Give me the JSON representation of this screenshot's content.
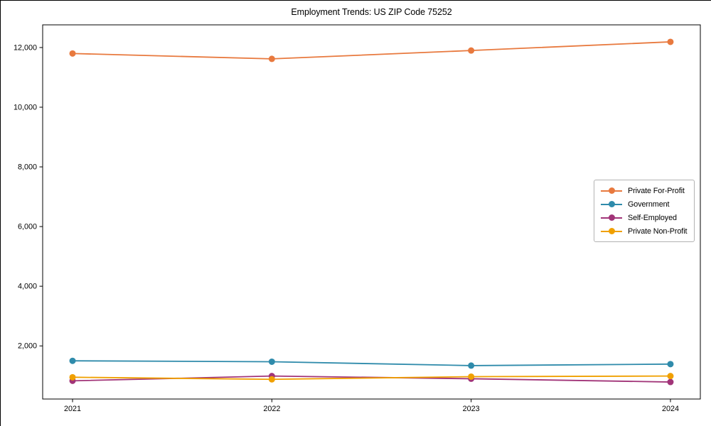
{
  "chart_data": {
    "type": "line",
    "title": "Employment Trends: US ZIP Code 75252",
    "x": [
      2021,
      2022,
      2023,
      2024
    ],
    "x_tick_labels": [
      "2021",
      "2022",
      "2023",
      "2024"
    ],
    "series": [
      {
        "name": "Private For-Profit",
        "color": "#e8793e",
        "values": [
          11800,
          11620,
          11900,
          12190
        ]
      },
      {
        "name": "Government",
        "color": "#2f8bab",
        "values": [
          1500,
          1470,
          1340,
          1390
        ]
      },
      {
        "name": "Self-Employed",
        "color": "#a13478",
        "values": [
          830,
          990,
          900,
          790
        ]
      },
      {
        "name": "Private Non-Profit",
        "color": "#f0a000",
        "values": [
          950,
          880,
          970,
          990
        ]
      }
    ],
    "yticks": {
      "values": [
        2000,
        4000,
        6000,
        8000,
        10000,
        12000
      ],
      "labels": [
        "2,000",
        "4,000",
        "6,000",
        "8,000",
        "10,000",
        "12,000"
      ]
    },
    "xlim": [
      2020.85,
      2024.15
    ],
    "ylim": [
      220,
      12760
    ],
    "xlabel": "",
    "ylabel": "",
    "grid": false,
    "legend_position": "center right",
    "axis_color": "#000000",
    "tick_label_color": "#000000"
  }
}
